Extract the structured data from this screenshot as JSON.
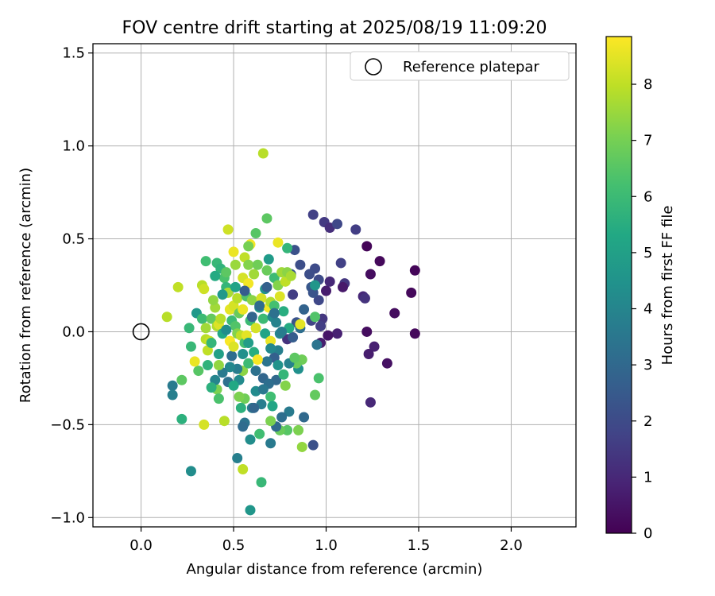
{
  "chart_data": {
    "type": "scatter",
    "title": "FOV centre drift starting at 2025/08/19 11:09:20",
    "xlabel": "Angular distance from reference (arcmin)",
    "ylabel": "Rotation from reference (arcmin)",
    "xlim": [
      -0.26,
      2.35
    ],
    "ylim": [
      -1.05,
      1.55
    ],
    "xticks": [
      0.0,
      0.5,
      1.0,
      1.5,
      2.0
    ],
    "xtick_labels": [
      "0.0",
      "0.5",
      "1.0",
      "1.5",
      "2.0"
    ],
    "yticks": [
      -1.0,
      -0.5,
      0.0,
      0.5,
      1.0,
      1.5
    ],
    "ytick_labels": [
      "−1.0",
      "−0.5",
      "0.0",
      "0.5",
      "1.0",
      "1.5"
    ],
    "grid": true,
    "legend": {
      "position": "top-right",
      "entries": [
        "Reference platepar"
      ]
    },
    "reference_point": {
      "name": "Reference platepar",
      "x": 0.0,
      "y": 0.0,
      "marker": "open-circle"
    },
    "colorbar": {
      "label": "Hours from first FF file",
      "colormap": "viridis",
      "range": [
        0,
        8.85
      ],
      "ticks": [
        0,
        1,
        2,
        3,
        4,
        5,
        6,
        7,
        8
      ],
      "tick_labels": [
        "0",
        "1",
        "2",
        "3",
        "4",
        "5",
        "6",
        "7",
        "8"
      ]
    },
    "points": [
      {
        "x": 1.48,
        "y": 0.33,
        "h": 0.1
      },
      {
        "x": 1.46,
        "y": 0.21,
        "h": 0.2
      },
      {
        "x": 1.48,
        "y": -0.01,
        "h": 0.2
      },
      {
        "x": 1.29,
        "y": 0.38,
        "h": 0.2
      },
      {
        "x": 1.22,
        "y": 0.46,
        "h": 0.1
      },
      {
        "x": 1.24,
        "y": 0.31,
        "h": 0.3
      },
      {
        "x": 1.37,
        "y": 0.1,
        "h": 0.3
      },
      {
        "x": 1.22,
        "y": 0.0,
        "h": 0.3
      },
      {
        "x": 1.33,
        "y": -0.17,
        "h": 0.4
      },
      {
        "x": 1.26,
        "y": -0.08,
        "h": 0.8
      },
      {
        "x": 1.23,
        "y": -0.12,
        "h": 0.7
      },
      {
        "x": 1.24,
        "y": -0.38,
        "h": 1.0
      },
      {
        "x": 1.2,
        "y": 0.19,
        "h": 1.0
      },
      {
        "x": 1.21,
        "y": 0.18,
        "h": 1.3
      },
      {
        "x": 1.16,
        "y": 0.55,
        "h": 1.6
      },
      {
        "x": 1.1,
        "y": 0.26,
        "h": 1.4
      },
      {
        "x": 1.08,
        "y": 0.37,
        "h": 1.7
      },
      {
        "x": 1.09,
        "y": 0.24,
        "h": 0.6
      },
      {
        "x": 1.06,
        "y": -0.01,
        "h": 0.8
      },
      {
        "x": 1.02,
        "y": 0.27,
        "h": 1.0
      },
      {
        "x": 1.0,
        "y": 0.22,
        "h": 0.7
      },
      {
        "x": 1.01,
        "y": -0.02,
        "h": 0.5
      },
      {
        "x": 0.97,
        "y": -0.06,
        "h": 0.7
      },
      {
        "x": 0.98,
        "y": 0.07,
        "h": 1.4
      },
      {
        "x": 0.93,
        "y": 0.63,
        "h": 1.7
      },
      {
        "x": 0.99,
        "y": 0.59,
        "h": 1.5
      },
      {
        "x": 1.02,
        "y": 0.56,
        "h": 1.2
      },
      {
        "x": 1.06,
        "y": 0.58,
        "h": 1.9
      },
      {
        "x": 0.94,
        "y": 0.34,
        "h": 2.0
      },
      {
        "x": 0.91,
        "y": 0.31,
        "h": 2.1
      },
      {
        "x": 0.92,
        "y": 0.24,
        "h": 2.4
      },
      {
        "x": 0.96,
        "y": 0.28,
        "h": 2.0
      },
      {
        "x": 0.96,
        "y": 0.17,
        "h": 1.9
      },
      {
        "x": 0.93,
        "y": 0.21,
        "h": 2.3
      },
      {
        "x": 0.97,
        "y": 0.03,
        "h": 1.6
      },
      {
        "x": 0.92,
        "y": 0.06,
        "h": 1.8
      },
      {
        "x": 0.93,
        "y": -0.61,
        "h": 2.2
      },
      {
        "x": 0.86,
        "y": 0.36,
        "h": 2.1
      },
      {
        "x": 0.83,
        "y": 0.44,
        "h": 2.2
      },
      {
        "x": 0.79,
        "y": 0.45,
        "h": 5.8
      },
      {
        "x": 0.81,
        "y": 0.31,
        "h": 2.4
      },
      {
        "x": 0.82,
        "y": 0.2,
        "h": 1.6
      },
      {
        "x": 0.84,
        "y": 0.05,
        "h": 2.3
      },
      {
        "x": 0.88,
        "y": 0.12,
        "h": 2.8
      },
      {
        "x": 0.86,
        "y": 0.02,
        "h": 3.2
      },
      {
        "x": 0.79,
        "y": -0.04,
        "h": 1.3
      },
      {
        "x": 0.82,
        "y": -0.03,
        "h": 2.6
      },
      {
        "x": 0.88,
        "y": -0.46,
        "h": 3.0
      },
      {
        "x": 0.95,
        "y": -0.07,
        "h": 3.4
      },
      {
        "x": 0.94,
        "y": 0.25,
        "h": 4.6
      },
      {
        "x": 0.94,
        "y": 0.08,
        "h": 6.4
      },
      {
        "x": 0.96,
        "y": -0.25,
        "h": 6.3
      },
      {
        "x": 0.94,
        "y": -0.34,
        "h": 6.7
      },
      {
        "x": 0.87,
        "y": -0.15,
        "h": 6.9
      },
      {
        "x": 0.87,
        "y": -0.62,
        "h": 7.4
      },
      {
        "x": 0.85,
        "y": -0.2,
        "h": 4.4
      },
      {
        "x": 0.84,
        "y": -0.17,
        "h": 6.8
      },
      {
        "x": 0.8,
        "y": -0.17,
        "h": 3.9
      },
      {
        "x": 0.85,
        "y": -0.53,
        "h": 7.1
      },
      {
        "x": 0.8,
        "y": -0.43,
        "h": 3.6
      },
      {
        "x": 0.79,
        "y": -0.53,
        "h": 6.5
      },
      {
        "x": 0.75,
        "y": -0.53,
        "h": 6.8
      },
      {
        "x": 0.76,
        "y": -0.46,
        "h": 3.2
      },
      {
        "x": 0.73,
        "y": -0.51,
        "h": 3.0
      },
      {
        "x": 0.73,
        "y": -0.26,
        "h": 3.0
      },
      {
        "x": 0.7,
        "y": -0.35,
        "h": 6.1
      },
      {
        "x": 0.7,
        "y": -0.48,
        "h": 7.1
      },
      {
        "x": 0.7,
        "y": -0.6,
        "h": 3.6
      },
      {
        "x": 0.78,
        "y": -0.29,
        "h": 7.2
      },
      {
        "x": 0.74,
        "y": -0.1,
        "h": 3.8
      },
      {
        "x": 0.72,
        "y": -0.14,
        "h": 2.7
      },
      {
        "x": 0.68,
        "y": -0.16,
        "h": 3.4
      },
      {
        "x": 0.66,
        "y": -0.25,
        "h": 2.9
      },
      {
        "x": 0.69,
        "y": -0.28,
        "h": 3.2
      },
      {
        "x": 0.65,
        "y": -0.39,
        "h": 3.7
      },
      {
        "x": 0.65,
        "y": -0.81,
        "h": 5.9
      },
      {
        "x": 0.6,
        "y": -0.41,
        "h": 3.8
      },
      {
        "x": 0.62,
        "y": -0.32,
        "h": 4.2
      },
      {
        "x": 0.61,
        "y": -0.41,
        "h": 2.9
      },
      {
        "x": 0.59,
        "y": -0.58,
        "h": 4.3
      },
      {
        "x": 0.59,
        "y": -0.96,
        "h": 4.6
      },
      {
        "x": 0.56,
        "y": -0.49,
        "h": 3.4
      },
      {
        "x": 0.55,
        "y": -0.51,
        "h": 3.1
      },
      {
        "x": 0.52,
        "y": -0.68,
        "h": 3.8
      },
      {
        "x": 0.55,
        "y": -0.74,
        "h": 8.0
      },
      {
        "x": 0.56,
        "y": -0.36,
        "h": 6.9
      },
      {
        "x": 0.53,
        "y": -0.35,
        "h": 7.1
      },
      {
        "x": 0.53,
        "y": -0.26,
        "h": 4.2
      },
      {
        "x": 0.55,
        "y": -0.21,
        "h": 7.3
      },
      {
        "x": 0.58,
        "y": -0.17,
        "h": 6.0
      },
      {
        "x": 0.55,
        "y": -0.12,
        "h": 4.4
      },
      {
        "x": 0.52,
        "y": -0.2,
        "h": 3.7
      },
      {
        "x": 0.49,
        "y": -0.13,
        "h": 3.2
      },
      {
        "x": 0.48,
        "y": -0.19,
        "h": 4.1
      },
      {
        "x": 0.47,
        "y": -0.27,
        "h": 3.3
      },
      {
        "x": 0.44,
        "y": -0.22,
        "h": 3.6
      },
      {
        "x": 0.45,
        "y": -0.48,
        "h": 7.9
      },
      {
        "x": 0.41,
        "y": -0.31,
        "h": 7.1
      },
      {
        "x": 0.42,
        "y": -0.36,
        "h": 6.3
      },
      {
        "x": 0.4,
        "y": -0.26,
        "h": 4.0
      },
      {
        "x": 0.38,
        "y": -0.3,
        "h": 5.6
      },
      {
        "x": 0.36,
        "y": -0.18,
        "h": 5.7
      },
      {
        "x": 0.42,
        "y": -0.18,
        "h": 7.4
      },
      {
        "x": 0.36,
        "y": -0.1,
        "h": 8.0
      },
      {
        "x": 0.34,
        "y": -0.5,
        "h": 8.3
      },
      {
        "x": 0.31,
        "y": -0.21,
        "h": 6.5
      },
      {
        "x": 0.29,
        "y": -0.16,
        "h": 8.6
      },
      {
        "x": 0.27,
        "y": -0.08,
        "h": 5.9
      },
      {
        "x": 0.27,
        "y": -0.75,
        "h": 4.3
      },
      {
        "x": 0.26,
        "y": 0.02,
        "h": 5.9
      },
      {
        "x": 0.22,
        "y": -0.26,
        "h": 6.6
      },
      {
        "x": 0.22,
        "y": -0.47,
        "h": 5.6
      },
      {
        "x": 0.17,
        "y": -0.29,
        "h": 3.6
      },
      {
        "x": 0.17,
        "y": -0.34,
        "h": 3.8
      },
      {
        "x": 0.14,
        "y": 0.08,
        "h": 7.9
      },
      {
        "x": 0.2,
        "y": 0.24,
        "h": 8.0
      },
      {
        "x": 0.3,
        "y": 0.1,
        "h": 4.7
      },
      {
        "x": 0.33,
        "y": 0.25,
        "h": 7.9
      },
      {
        "x": 0.34,
        "y": 0.23,
        "h": 8.2
      },
      {
        "x": 0.35,
        "y": 0.38,
        "h": 6.1
      },
      {
        "x": 0.33,
        "y": 0.07,
        "h": 6.0
      },
      {
        "x": 0.35,
        "y": 0.02,
        "h": 7.6
      },
      {
        "x": 0.35,
        "y": -0.04,
        "h": 7.9
      },
      {
        "x": 0.37,
        "y": -0.05,
        "h": 8.1
      },
      {
        "x": 0.38,
        "y": 0.07,
        "h": 6.7
      },
      {
        "x": 0.4,
        "y": 0.13,
        "h": 7.6
      },
      {
        "x": 0.39,
        "y": 0.17,
        "h": 7.4
      },
      {
        "x": 0.41,
        "y": 0.37,
        "h": 5.9
      },
      {
        "x": 0.41,
        "y": 0.03,
        "h": 7.8
      },
      {
        "x": 0.42,
        "y": 0.04,
        "h": 8.4
      },
      {
        "x": 0.43,
        "y": 0.34,
        "h": 5.7
      },
      {
        "x": 0.43,
        "y": 0.07,
        "h": 7.9
      },
      {
        "x": 0.44,
        "y": -0.01,
        "h": 5.3
      },
      {
        "x": 0.45,
        "y": 0.29,
        "h": 6.3
      },
      {
        "x": 0.46,
        "y": 0.24,
        "h": 5.8
      },
      {
        "x": 0.46,
        "y": 0.32,
        "h": 6.6
      },
      {
        "x": 0.47,
        "y": 0.55,
        "h": 8.2
      },
      {
        "x": 0.47,
        "y": 0.21,
        "h": 7.7
      },
      {
        "x": 0.48,
        "y": 0.12,
        "h": 8.5
      },
      {
        "x": 0.48,
        "y": -0.05,
        "h": 8.8
      },
      {
        "x": 0.49,
        "y": 0.06,
        "h": 6.0
      },
      {
        "x": 0.5,
        "y": 0.14,
        "h": 8.3
      },
      {
        "x": 0.5,
        "y": 0.43,
        "h": 8.6
      },
      {
        "x": 0.5,
        "y": -0.08,
        "h": 8.4
      },
      {
        "x": 0.51,
        "y": 0.36,
        "h": 7.5
      },
      {
        "x": 0.51,
        "y": 0.24,
        "h": 5.1
      },
      {
        "x": 0.51,
        "y": 0.03,
        "h": 6.4
      },
      {
        "x": 0.52,
        "y": -0.01,
        "h": 7.2
      },
      {
        "x": 0.52,
        "y": 0.18,
        "h": 7.9
      },
      {
        "x": 0.53,
        "y": 0.1,
        "h": 6.8
      },
      {
        "x": 0.54,
        "y": -0.02,
        "h": 8.0
      },
      {
        "x": 0.55,
        "y": 0.29,
        "h": 8.3
      },
      {
        "x": 0.55,
        "y": 0.12,
        "h": 8.6
      },
      {
        "x": 0.56,
        "y": 0.4,
        "h": 8.0
      },
      {
        "x": 0.56,
        "y": -0.06,
        "h": 6.2
      },
      {
        "x": 0.57,
        "y": 0.19,
        "h": 6.4
      },
      {
        "x": 0.57,
        "y": -0.02,
        "h": 8.5
      },
      {
        "x": 0.58,
        "y": 0.36,
        "h": 7.2
      },
      {
        "x": 0.58,
        "y": 0.26,
        "h": 8.7
      },
      {
        "x": 0.59,
        "y": 0.47,
        "h": 8.7
      },
      {
        "x": 0.59,
        "y": 0.06,
        "h": 6.0
      },
      {
        "x": 0.6,
        "y": 0.17,
        "h": 7.3
      },
      {
        "x": 0.61,
        "y": 0.31,
        "h": 7.6
      },
      {
        "x": 0.61,
        "y": -0.11,
        "h": 5.5
      },
      {
        "x": 0.62,
        "y": 0.53,
        "h": 6.5
      },
      {
        "x": 0.62,
        "y": 0.02,
        "h": 8.3
      },
      {
        "x": 0.63,
        "y": 0.36,
        "h": 6.9
      },
      {
        "x": 0.63,
        "y": -0.15,
        "h": 8.8
      },
      {
        "x": 0.64,
        "y": 0.13,
        "h": 4.9
      },
      {
        "x": 0.65,
        "y": 0.18,
        "h": 8.3
      },
      {
        "x": 0.66,
        "y": 0.96,
        "h": 7.9
      },
      {
        "x": 0.66,
        "y": 0.07,
        "h": 6.0
      },
      {
        "x": 0.67,
        "y": 0.23,
        "h": 4.5
      },
      {
        "x": 0.67,
        "y": -0.01,
        "h": 5.1
      },
      {
        "x": 0.68,
        "y": 0.61,
        "h": 6.6
      },
      {
        "x": 0.68,
        "y": 0.33,
        "h": 6.8
      },
      {
        "x": 0.69,
        "y": 0.13,
        "h": 8.7
      },
      {
        "x": 0.69,
        "y": 0.39,
        "h": 4.8
      },
      {
        "x": 0.7,
        "y": -0.05,
        "h": 8.6
      },
      {
        "x": 0.7,
        "y": 0.16,
        "h": 7.8
      },
      {
        "x": 0.71,
        "y": 0.08,
        "h": 4.2
      },
      {
        "x": 0.72,
        "y": 0.14,
        "h": 6.2
      },
      {
        "x": 0.72,
        "y": 0.29,
        "h": 6.0
      },
      {
        "x": 0.73,
        "y": 0.05,
        "h": 3.9
      },
      {
        "x": 0.74,
        "y": 0.25,
        "h": 7.2
      },
      {
        "x": 0.74,
        "y": 0.48,
        "h": 8.6
      },
      {
        "x": 0.75,
        "y": 0.19,
        "h": 8.4
      },
      {
        "x": 0.75,
        "y": -0.01,
        "h": 4.0
      },
      {
        "x": 0.76,
        "y": 0.32,
        "h": 7.6
      },
      {
        "x": 0.77,
        "y": 0.11,
        "h": 5.5
      },
      {
        "x": 0.78,
        "y": 0.27,
        "h": 8.0
      },
      {
        "x": 0.79,
        "y": 0.32,
        "h": 7.3
      },
      {
        "x": 0.8,
        "y": 0.02,
        "h": 5.4
      },
      {
        "x": 0.81,
        "y": 0.3,
        "h": 7.7
      },
      {
        "x": 0.56,
        "y": 0.22,
        "h": 2.6
      },
      {
        "x": 0.58,
        "y": -0.06,
        "h": 4.9
      },
      {
        "x": 0.6,
        "y": 0.08,
        "h": 2.9
      },
      {
        "x": 0.62,
        "y": -0.21,
        "h": 3.3
      },
      {
        "x": 0.64,
        "y": 0.14,
        "h": 3.1
      },
      {
        "x": 0.66,
        "y": -0.31,
        "h": 3.5
      },
      {
        "x": 0.68,
        "y": 0.24,
        "h": 2.7
      },
      {
        "x": 0.7,
        "y": -0.09,
        "h": 4.1
      },
      {
        "x": 0.72,
        "y": 0.1,
        "h": 3.3
      },
      {
        "x": 0.74,
        "y": -0.18,
        "h": 4.5
      },
      {
        "x": 0.76,
        "y": 0.0,
        "h": 3.7
      },
      {
        "x": 0.46,
        "y": 0.01,
        "h": 4.3
      },
      {
        "x": 0.44,
        "y": 0.2,
        "h": 4.7
      },
      {
        "x": 0.42,
        "y": -0.12,
        "h": 5.0
      },
      {
        "x": 0.4,
        "y": 0.3,
        "h": 5.4
      },
      {
        "x": 0.38,
        "y": -0.06,
        "h": 5.8
      },
      {
        "x": 0.5,
        "y": -0.29,
        "h": 5.3
      },
      {
        "x": 0.54,
        "y": -0.41,
        "h": 5.6
      },
      {
        "x": 0.58,
        "y": 0.46,
        "h": 7.0
      },
      {
        "x": 0.64,
        "y": -0.55,
        "h": 6.1
      },
      {
        "x": 0.71,
        "y": -0.4,
        "h": 5.2
      },
      {
        "x": 0.77,
        "y": -0.23,
        "h": 5.8
      },
      {
        "x": 0.83,
        "y": -0.14,
        "h": 6.6
      },
      {
        "x": 0.86,
        "y": 0.04,
        "h": 8.5
      }
    ]
  }
}
